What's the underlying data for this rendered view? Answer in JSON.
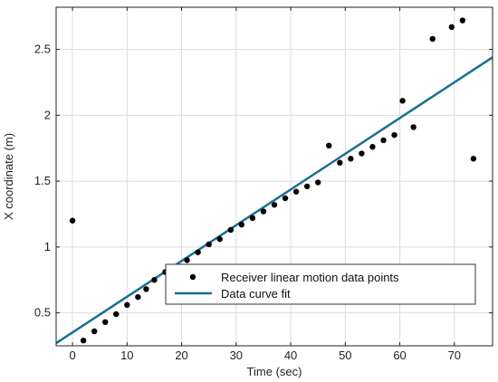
{
  "chart_data": {
    "type": "scatter",
    "xlabel": "Time (sec)",
    "ylabel": "X coordinate (m)",
    "xlim": [
      -3,
      77
    ],
    "ylim": [
      0.25,
      2.82
    ],
    "xticks": [
      0,
      10,
      20,
      30,
      40,
      50,
      60,
      70
    ],
    "yticks": [
      0.5,
      1,
      1.5,
      2,
      2.5
    ],
    "grid": true,
    "legend_placement": "bottom-right",
    "series": [
      {
        "name": "Receiver linear motion data points",
        "kind": "points",
        "color": "#000000",
        "x": [
          0,
          2,
          4,
          6,
          8,
          10,
          12,
          13.5,
          15,
          17,
          21,
          23,
          25,
          27,
          29,
          31,
          33,
          35,
          37,
          39,
          41,
          43,
          45,
          47,
          49,
          51,
          53,
          55,
          57,
          59,
          60.5,
          62.5,
          66,
          69.5,
          71.5,
          73.5
        ],
        "y": [
          1.2,
          0.29,
          0.36,
          0.43,
          0.49,
          0.56,
          0.62,
          0.68,
          0.75,
          0.81,
          0.9,
          0.96,
          1.02,
          1.06,
          1.13,
          1.17,
          1.22,
          1.27,
          1.32,
          1.37,
          1.42,
          1.46,
          1.49,
          1.77,
          1.64,
          1.67,
          1.71,
          1.76,
          1.81,
          1.85,
          2.11,
          1.91,
          2.58,
          2.67,
          2.72,
          1.67
        ]
      },
      {
        "name": "Data curve fit",
        "kind": "line",
        "color": "#1a6e96",
        "x": [
          -3,
          77
        ],
        "y": [
          0.27,
          2.44
        ]
      }
    ]
  }
}
